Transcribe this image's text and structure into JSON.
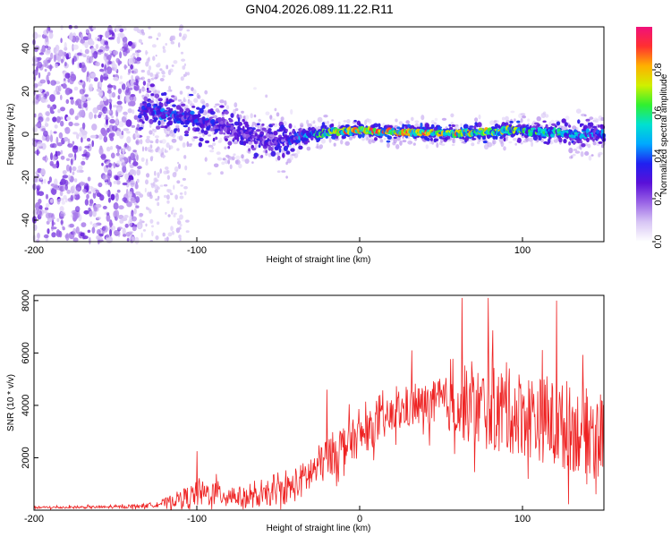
{
  "title": "GN04.2026.089.11.22.R11",
  "chart_data": [
    {
      "type": "heatmap",
      "name": "spectrogram",
      "xlabel": "Height of straight line (km)",
      "ylabel": "Frequency (Hz)",
      "xlim": [
        -200,
        150
      ],
      "ylim": [
        -50,
        50
      ],
      "xticks": [
        -200,
        -100,
        0,
        100
      ],
      "yticks": [
        -40,
        -20,
        0,
        20,
        40
      ],
      "colorbar": {
        "label": "Normalized spectral amplitude",
        "range": [
          0,
          1
        ],
        "ticks": [
          "0.0",
          "0.2",
          "0.4",
          "0.6",
          "0.8"
        ],
        "colormap": [
          "#ffffff",
          "#d8c6f5",
          "#9a64e6",
          "#5a10d8",
          "#2020f0",
          "#00a8ff",
          "#00e0d0",
          "#30f030",
          "#d0f000",
          "#ffb000",
          "#ff3030",
          "#f0107a"
        ]
      },
      "ridge": [
        {
          "x": -130,
          "center": 12,
          "width": 8,
          "amplitude": 0.35
        },
        {
          "x": -120,
          "center": 10,
          "width": 7,
          "amplitude": 0.45
        },
        {
          "x": -110,
          "center": 8,
          "width": 7,
          "amplitude": 0.4
        },
        {
          "x": -100,
          "center": 6,
          "width": 7,
          "amplitude": 0.38
        },
        {
          "x": -90,
          "center": 4,
          "width": 7,
          "amplitude": 0.35
        },
        {
          "x": -80,
          "center": 2,
          "width": 7,
          "amplitude": 0.33
        },
        {
          "x": -70,
          "center": 0,
          "width": 7,
          "amplitude": 0.3
        },
        {
          "x": -60,
          "center": -2,
          "width": 7,
          "amplitude": 0.3
        },
        {
          "x": -50,
          "center": -3,
          "width": 7,
          "amplitude": 0.32
        },
        {
          "x": -40,
          "center": -2,
          "width": 5,
          "amplitude": 0.4
        },
        {
          "x": -30,
          "center": 0,
          "width": 3,
          "amplitude": 0.55
        },
        {
          "x": -20,
          "center": 1,
          "width": 2.5,
          "amplitude": 0.7
        },
        {
          "x": -10,
          "center": 1.5,
          "width": 2.5,
          "amplitude": 0.85
        },
        {
          "x": 0,
          "center": 2,
          "width": 2.5,
          "amplitude": 0.9
        },
        {
          "x": 10,
          "center": 1,
          "width": 2.5,
          "amplitude": 0.9
        },
        {
          "x": 20,
          "center": 1,
          "width": 2.5,
          "amplitude": 0.85
        },
        {
          "x": 30,
          "center": 1,
          "width": 2.5,
          "amplitude": 0.9
        },
        {
          "x": 40,
          "center": 1,
          "width": 2.5,
          "amplitude": 0.85
        },
        {
          "x": 50,
          "center": 0.5,
          "width": 2.5,
          "amplitude": 0.85
        },
        {
          "x": 60,
          "center": 0.5,
          "width": 2.5,
          "amplitude": 0.85
        },
        {
          "x": 70,
          "center": 1,
          "width": 3,
          "amplitude": 0.8
        },
        {
          "x": 80,
          "center": 1,
          "width": 3,
          "amplitude": 0.75
        },
        {
          "x": 90,
          "center": 2,
          "width": 3.5,
          "amplitude": 0.7
        },
        {
          "x": 100,
          "center": 2,
          "width": 3.5,
          "amplitude": 0.65
        },
        {
          "x": 110,
          "center": 1,
          "width": 3.5,
          "amplitude": 0.6
        },
        {
          "x": 120,
          "center": 1,
          "width": 3.5,
          "amplitude": 0.6
        },
        {
          "x": 130,
          "center": 0,
          "width": 4,
          "amplitude": 0.55
        },
        {
          "x": 140,
          "center": 0,
          "width": 4,
          "amplitude": 0.5
        },
        {
          "x": 150,
          "center": 0,
          "width": 4,
          "amplitude": 0.45
        }
      ],
      "noise_region": {
        "x_from": -200,
        "x_to": -135,
        "amplitude": 0.15
      }
    },
    {
      "type": "line",
      "name": "snr",
      "xlabel": "Height of straight line (km)",
      "ylabel": "SNR (10 * v/v)",
      "xlim": [
        -200,
        150
      ],
      "ylim": [
        0,
        8200
      ],
      "xticks": [
        -200,
        -100,
        0,
        100
      ],
      "yticks": [
        2000,
        4000,
        6000,
        8000
      ],
      "color": "#ee2222",
      "series": [
        {
          "name": "envelope",
          "x": [
            -200,
            -150,
            -130,
            -120,
            -110,
            -100,
            -90,
            -80,
            -70,
            -60,
            -50,
            -40,
            -30,
            -20,
            -10,
            0,
            10,
            20,
            30,
            40,
            50,
            60,
            70,
            80,
            90,
            100,
            110,
            120,
            130,
            140,
            150
          ],
          "base": [
            100,
            120,
            180,
            280,
            450,
            600,
            650,
            600,
            450,
            500,
            700,
            900,
            1400,
            2000,
            2500,
            2800,
            3200,
            3600,
            3900,
            4000,
            4100,
            4000,
            3900,
            3900,
            3800,
            3700,
            3500,
            3300,
            3100,
            3000,
            2900
          ],
          "amp": [
            80,
            100,
            150,
            300,
            600,
            900,
            900,
            800,
            700,
            700,
            900,
            1100,
            1400,
            1500,
            1500,
            1400,
            1300,
            1300,
            1400,
            1500,
            1700,
            2200,
            2800,
            3000,
            3000,
            3000,
            3000,
            3000,
            3000,
            3000,
            3000
          ]
        }
      ],
      "peaks": [
        {
          "x": -100,
          "y": 2250
        },
        {
          "x": -20,
          "y": 4600
        },
        {
          "x": 32,
          "y": 6100
        },
        {
          "x": 63,
          "y": 8100
        },
        {
          "x": 79,
          "y": 8100
        },
        {
          "x": 121,
          "y": 8000
        }
      ]
    }
  ]
}
